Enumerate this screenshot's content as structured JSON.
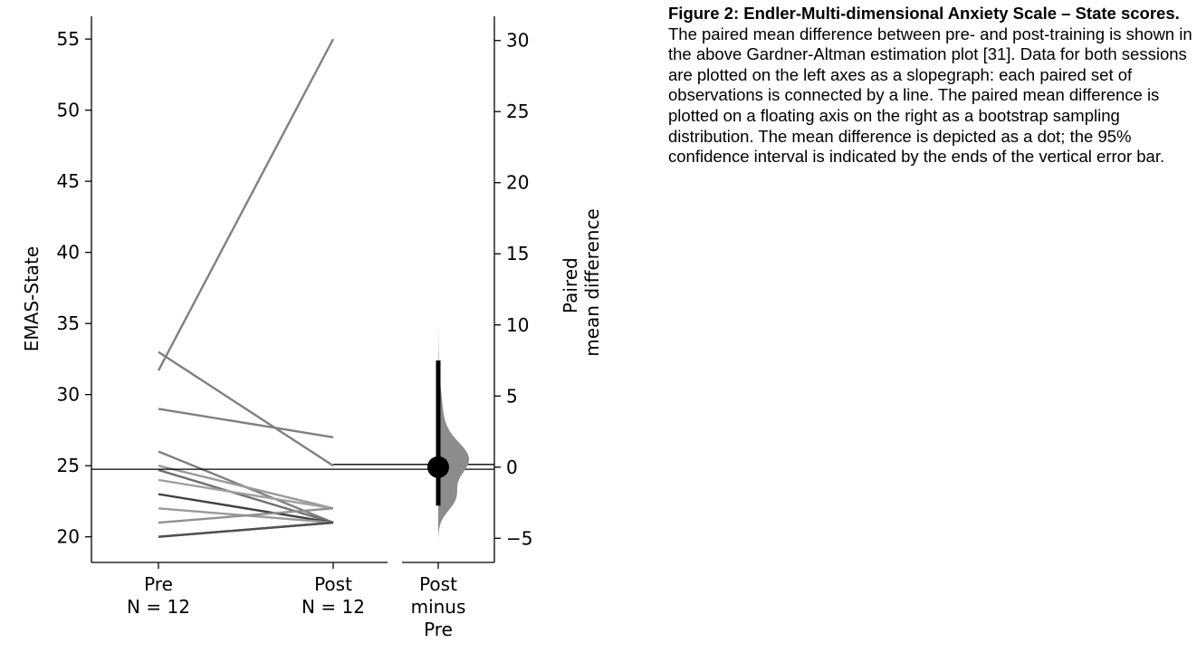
{
  "chart_data": {
    "type": "gardner-altman estimation plot",
    "left_axis": {
      "ylabel": "EMAS-State",
      "ylim": [
        18.2,
        56.6
      ],
      "yticks": [
        20,
        25,
        30,
        35,
        40,
        45,
        50,
        55
      ],
      "categories": [
        {
          "name": "Pre",
          "n_label": "N = 12"
        },
        {
          "name": "Post",
          "n_label": "N = 12"
        }
      ],
      "pairs": [
        {
          "pre": 31.7,
          "post": 55.0,
          "color": "#808080"
        },
        {
          "pre": 33.0,
          "post": 25.0,
          "color": "#808080"
        },
        {
          "pre": 29.0,
          "post": 27.0,
          "color": "#808080"
        },
        {
          "pre": 26.0,
          "post": 21.0,
          "color": "#808080"
        },
        {
          "pre": 25.0,
          "post": 22.0,
          "color": "#9a9a9a"
        },
        {
          "pre": 24.7,
          "post": 21.0,
          "color": "#707070"
        },
        {
          "pre": 24.0,
          "post": 22.0,
          "color": "#a0a0a0"
        },
        {
          "pre": 23.0,
          "post": 21.0,
          "color": "#404040"
        },
        {
          "pre": 22.0,
          "post": 21.0,
          "color": "#9a9a9a"
        },
        {
          "pre": 21.0,
          "post": 22.0,
          "color": "#909090"
        },
        {
          "pre": 20.0,
          "post": 21.0,
          "color": "#303030"
        },
        {
          "pre": 20.0,
          "post": 21.0,
          "color": "#505050"
        }
      ],
      "reference_line": 24.75
    },
    "right_axis": {
      "ylabel": [
        "Paired",
        "mean difference"
      ],
      "ylim": [
        -6.7,
        31.7
      ],
      "yticks": [
        -5,
        0,
        5,
        10,
        15,
        20,
        25,
        30
      ],
      "category": [
        "Post",
        "minus",
        "Pre"
      ],
      "mean_difference": 0.0,
      "ci_95": [
        -2.7,
        7.5
      ],
      "distribution_range": [
        -5.0,
        10.5
      ],
      "distribution_color": "#8c8c8c"
    }
  },
  "caption": {
    "title": "Figure 2: Endler-Multi-dimensional Anxiety Scale – State scores.",
    "body": " The paired mean difference between pre- and post-training is shown in the above Gardner-Altman estimation plot [31]. Data for both sessions are plotted on the left axes as a slopegraph: each paired set of observations is connected by a line. The paired mean difference is plotted on a floating axis on the right as a bootstrap sampling distribution. The mean difference is depicted as a dot; the 95% confidence interval is indicated by the ends of the vertical error bar."
  }
}
